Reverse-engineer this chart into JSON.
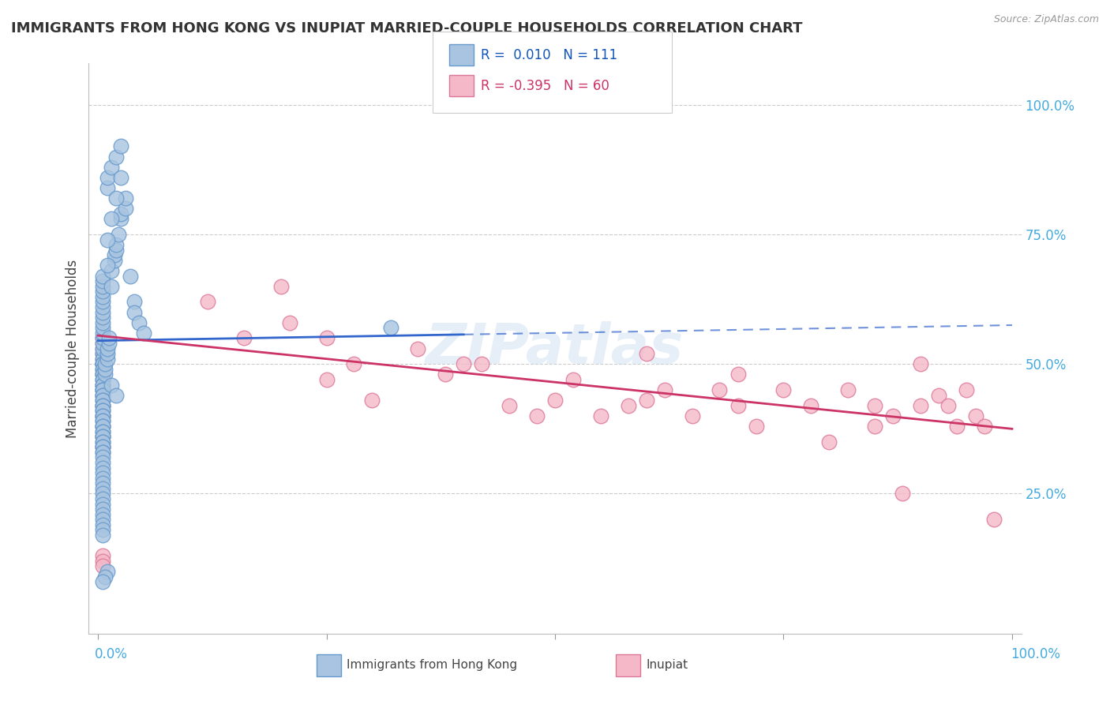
{
  "title": "IMMIGRANTS FROM HONG KONG VS INUPIAT MARRIED-COUPLE HOUSEHOLDS CORRELATION CHART",
  "source_text": "Source: ZipAtlas.com",
  "ylabel": "Married-couple Households",
  "xlim": [
    -0.01,
    1.01
  ],
  "ylim": [
    -0.02,
    1.08
  ],
  "grid_color": "#cccccc",
  "background_color": "#ffffff",
  "series1": {
    "label": "Immigrants from Hong Kong",
    "color": "#a8c4e0",
    "edge_color": "#6699cc",
    "R": 0.01,
    "N": 111,
    "line_color": "#3366cc",
    "line_style": "-"
  },
  "series2": {
    "label": "Inupiat",
    "color": "#f4b8c8",
    "edge_color": "#dd7799",
    "R": -0.395,
    "N": 60,
    "line_color": "#cc3366",
    "line_style": "-"
  },
  "legend_R1_color": "#1155bb",
  "legend_R2_color": "#cc3366",
  "right_axis_color": "#44aadd",
  "watermark": "ZIPatlas",
  "blue_scatter_x": [
    0.005,
    0.005,
    0.005,
    0.005,
    0.005,
    0.005,
    0.005,
    0.005,
    0.005,
    0.005,
    0.005,
    0.005,
    0.005,
    0.005,
    0.005,
    0.005,
    0.005,
    0.005,
    0.005,
    0.005,
    0.005,
    0.005,
    0.005,
    0.005,
    0.005,
    0.005,
    0.005,
    0.005,
    0.005,
    0.005,
    0.005,
    0.005,
    0.005,
    0.005,
    0.005,
    0.005,
    0.005,
    0.005,
    0.005,
    0.005,
    0.005,
    0.005,
    0.005,
    0.005,
    0.005,
    0.005,
    0.005,
    0.005,
    0.005,
    0.005,
    0.005,
    0.005,
    0.005,
    0.005,
    0.005,
    0.005,
    0.005,
    0.005,
    0.005,
    0.005,
    0.005,
    0.005,
    0.005,
    0.005,
    0.005,
    0.005,
    0.005,
    0.005,
    0.005,
    0.005,
    0.005,
    0.008,
    0.008,
    0.008,
    0.01,
    0.01,
    0.01,
    0.012,
    0.012,
    0.015,
    0.015,
    0.018,
    0.018,
    0.02,
    0.02,
    0.022,
    0.025,
    0.025,
    0.03,
    0.03,
    0.035,
    0.04,
    0.04,
    0.045,
    0.05,
    0.01,
    0.01,
    0.015,
    0.02,
    0.025,
    0.32,
    0.015,
    0.02,
    0.01,
    0.01,
    0.015,
    0.02,
    0.025,
    0.01,
    0.008,
    0.005
  ],
  "blue_scatter_y": [
    0.52,
    0.51,
    0.5,
    0.5,
    0.5,
    0.49,
    0.49,
    0.48,
    0.48,
    0.47,
    0.47,
    0.46,
    0.46,
    0.45,
    0.45,
    0.45,
    0.44,
    0.44,
    0.43,
    0.43,
    0.42,
    0.42,
    0.41,
    0.41,
    0.4,
    0.4,
    0.39,
    0.39,
    0.38,
    0.38,
    0.37,
    0.37,
    0.36,
    0.36,
    0.35,
    0.35,
    0.34,
    0.34,
    0.33,
    0.33,
    0.32,
    0.31,
    0.3,
    0.29,
    0.28,
    0.27,
    0.26,
    0.25,
    0.24,
    0.23,
    0.22,
    0.21,
    0.2,
    0.19,
    0.18,
    0.17,
    0.53,
    0.54,
    0.55,
    0.56,
    0.57,
    0.58,
    0.59,
    0.6,
    0.61,
    0.62,
    0.63,
    0.64,
    0.65,
    0.66,
    0.67,
    0.48,
    0.49,
    0.5,
    0.51,
    0.52,
    0.53,
    0.54,
    0.55,
    0.65,
    0.68,
    0.7,
    0.71,
    0.72,
    0.73,
    0.75,
    0.78,
    0.79,
    0.8,
    0.82,
    0.67,
    0.62,
    0.6,
    0.58,
    0.56,
    0.84,
    0.86,
    0.88,
    0.9,
    0.92,
    0.57,
    0.46,
    0.44,
    0.69,
    0.74,
    0.78,
    0.82,
    0.86,
    0.1,
    0.09,
    0.08
  ],
  "pink_scatter_x": [
    0.005,
    0.005,
    0.005,
    0.005,
    0.005,
    0.005,
    0.005,
    0.005,
    0.005,
    0.005,
    0.005,
    0.005,
    0.005,
    0.005,
    0.005,
    0.005,
    0.005,
    0.12,
    0.16,
    0.2,
    0.21,
    0.25,
    0.25,
    0.28,
    0.3,
    0.35,
    0.38,
    0.4,
    0.42,
    0.45,
    0.48,
    0.5,
    0.52,
    0.55,
    0.58,
    0.6,
    0.6,
    0.62,
    0.65,
    0.68,
    0.7,
    0.7,
    0.72,
    0.75,
    0.78,
    0.8,
    0.82,
    0.85,
    0.85,
    0.87,
    0.88,
    0.9,
    0.9,
    0.92,
    0.93,
    0.94,
    0.95,
    0.96,
    0.97,
    0.98
  ],
  "pink_scatter_y": [
    0.55,
    0.54,
    0.53,
    0.52,
    0.51,
    0.5,
    0.48,
    0.46,
    0.44,
    0.42,
    0.4,
    0.38,
    0.36,
    0.34,
    0.13,
    0.12,
    0.11,
    0.62,
    0.55,
    0.65,
    0.58,
    0.55,
    0.47,
    0.5,
    0.43,
    0.53,
    0.48,
    0.5,
    0.5,
    0.42,
    0.4,
    0.43,
    0.47,
    0.4,
    0.42,
    0.52,
    0.43,
    0.45,
    0.4,
    0.45,
    0.42,
    0.48,
    0.38,
    0.45,
    0.42,
    0.35,
    0.45,
    0.38,
    0.42,
    0.4,
    0.25,
    0.5,
    0.42,
    0.44,
    0.42,
    0.38,
    0.45,
    0.4,
    0.38,
    0.2
  ],
  "blue_line_solid_end": 0.4,
  "blue_line_start_y": 0.545,
  "blue_line_end_y": 0.575,
  "pink_line_start_y": 0.555,
  "pink_line_end_y": 0.375
}
